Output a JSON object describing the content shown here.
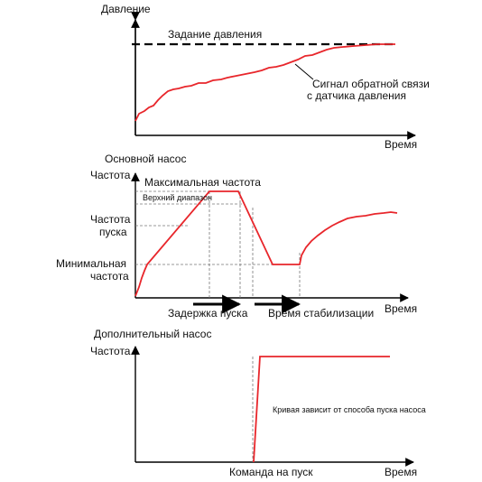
{
  "colors": {
    "signal": "#e8262b",
    "axis": "#000000",
    "guide": "#777777"
  },
  "panel1": {
    "ylabel": "Давление",
    "xlabel": "Время",
    "setpoint_label": "Задание давления",
    "feedback_label_line1": "Сигнал обратной связи",
    "feedback_label_line2": "с датчика давления"
  },
  "panel2": {
    "title": "Основной насос",
    "ylabel": "Частота",
    "xlabel": "Время",
    "max_freq_label": "Максимальная частота",
    "upper_band_label": "Верхний диапазон",
    "start_freq_line1": "Частота",
    "start_freq_line2": "пуска",
    "min_freq_line1": "Минимальная",
    "min_freq_line2": "частота",
    "start_delay_label": "Задержка пуска",
    "stabilization_label": "Время стабилизации"
  },
  "panel3": {
    "title": "Дополнительный насос",
    "ylabel": "Частота",
    "xlabel": "Время",
    "curve_note": "Кривая зависит от способа пуска насоса",
    "start_command_label": "Команда на пуск"
  }
}
